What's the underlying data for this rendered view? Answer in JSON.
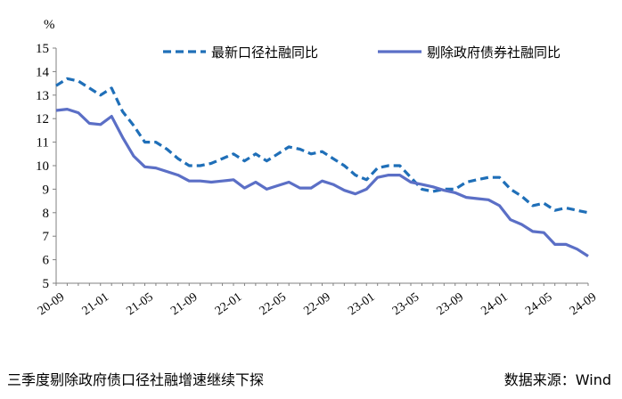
{
  "chart_data": {
    "type": "line",
    "unit_label": "%",
    "ylim": [
      5,
      15
    ],
    "yticks": [
      5,
      6,
      7,
      8,
      9,
      10,
      11,
      12,
      13,
      14,
      15
    ],
    "x_tick_labels": [
      "20-09",
      "21-01",
      "21-05",
      "21-09",
      "22-01",
      "22-05",
      "22-09",
      "23-01",
      "23-05",
      "23-09",
      "24-01",
      "24-05",
      "24-09"
    ],
    "x": [
      "20-09",
      "20-10",
      "20-11",
      "20-12",
      "21-01",
      "21-02",
      "21-03",
      "21-04",
      "21-05",
      "21-06",
      "21-07",
      "21-08",
      "21-09",
      "21-10",
      "21-11",
      "21-12",
      "22-01",
      "22-02",
      "22-03",
      "22-04",
      "22-05",
      "22-06",
      "22-07",
      "22-08",
      "22-09",
      "22-10",
      "22-11",
      "22-12",
      "23-01",
      "23-02",
      "23-03",
      "23-04",
      "23-05",
      "23-06",
      "23-07",
      "23-08",
      "23-09",
      "23-10",
      "23-11",
      "23-12",
      "24-01",
      "24-02",
      "24-03",
      "24-04",
      "24-05",
      "24-06",
      "24-07",
      "24-08",
      "24-09"
    ],
    "series": [
      {
        "name": "最新口径社融同比",
        "style": "dashed",
        "color": "#1f6fb8",
        "values": [
          13.4,
          13.7,
          13.6,
          13.3,
          13.0,
          13.3,
          12.3,
          11.7,
          11.0,
          11.0,
          10.7,
          10.3,
          10.0,
          10.0,
          10.1,
          10.3,
          10.5,
          10.2,
          10.5,
          10.2,
          10.5,
          10.8,
          10.7,
          10.5,
          10.6,
          10.3,
          10.0,
          9.6,
          9.4,
          9.9,
          10.0,
          10.0,
          9.5,
          9.0,
          8.9,
          9.0,
          9.0,
          9.3,
          9.4,
          9.5,
          9.5,
          9.0,
          8.7,
          8.3,
          8.4,
          8.1,
          8.2,
          8.1,
          8.0
        ]
      },
      {
        "name": "剔除政府债券社融同比",
        "style": "solid",
        "color": "#5b6fc6",
        "values": [
          12.35,
          12.4,
          12.25,
          11.8,
          11.75,
          12.1,
          11.2,
          10.4,
          9.95,
          9.9,
          9.75,
          9.6,
          9.35,
          9.35,
          9.3,
          9.35,
          9.4,
          9.05,
          9.3,
          9.0,
          9.15,
          9.3,
          9.05,
          9.05,
          9.35,
          9.2,
          8.95,
          8.8,
          9.0,
          9.5,
          9.6,
          9.6,
          9.3,
          9.2,
          9.1,
          8.95,
          8.85,
          8.65,
          8.6,
          8.55,
          8.3,
          7.7,
          7.5,
          7.2,
          7.15,
          6.65,
          6.65,
          6.45,
          6.15
        ]
      }
    ],
    "legend_position": "top-right",
    "grid": false
  },
  "footer": {
    "caption": "三季度剔除政府债口径社融增速继续下探",
    "source": "数据来源：Wind"
  }
}
